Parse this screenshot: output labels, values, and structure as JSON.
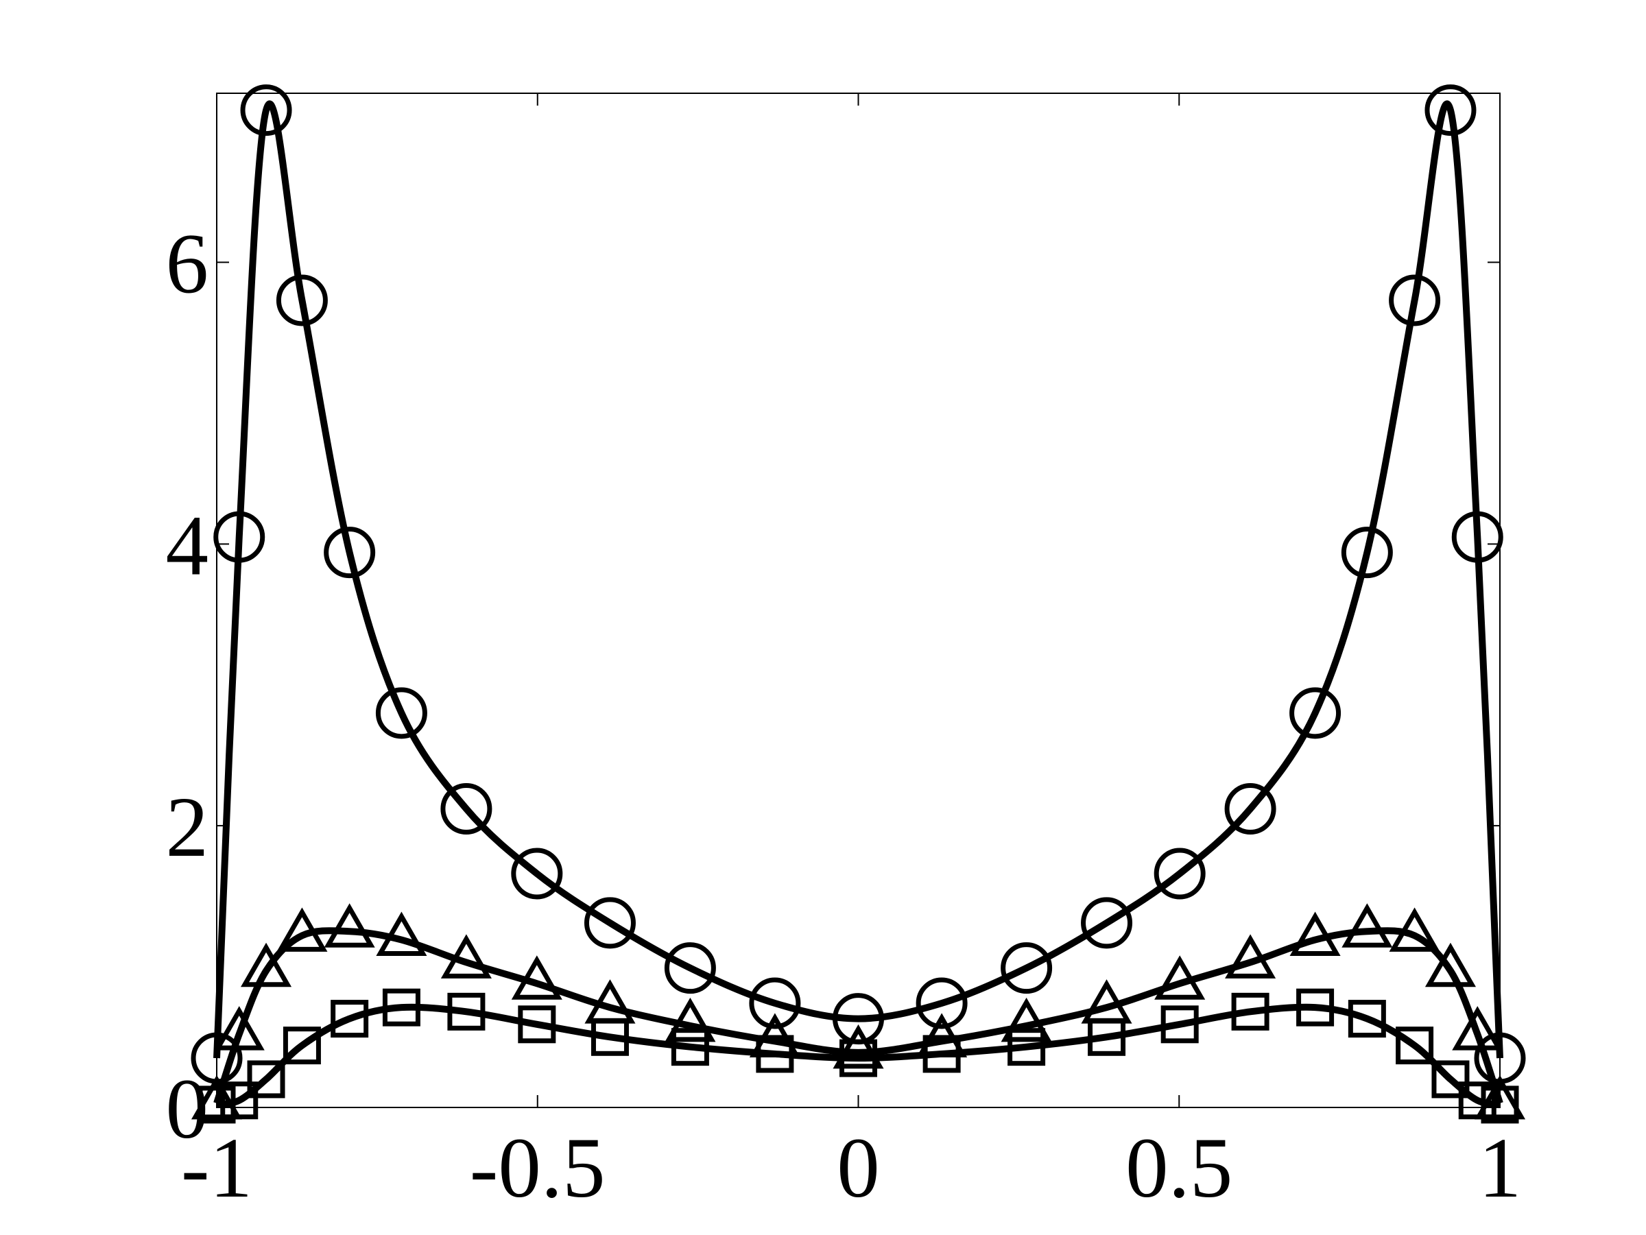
{
  "chart_data": {
    "type": "line",
    "x": [
      -1,
      -0.965,
      -0.923,
      -0.867,
      -0.793,
      -0.712,
      -0.611,
      -0.501,
      -0.387,
      -0.262,
      -0.13,
      0,
      0.13,
      0.262,
      0.387,
      0.501,
      0.611,
      0.712,
      0.793,
      0.867,
      0.923,
      0.965,
      1
    ],
    "series": [
      {
        "color": "#000000",
        "marker": "circle",
        "values": [
          0.35,
          4.05,
          7.08,
          5.73,
          3.94,
          2.8,
          2.12,
          1.66,
          1.31,
          0.99,
          0.74,
          0.63,
          0.74,
          0.99,
          1.31,
          1.66,
          2.12,
          2.8,
          3.94,
          5.73,
          7.08,
          4.05,
          0.35
        ]
      },
      {
        "color": "#000000",
        "marker": "triangle",
        "values": [
          0.03,
          0.52,
          0.97,
          1.22,
          1.25,
          1.19,
          1.03,
          0.88,
          0.71,
          0.58,
          0.47,
          0.39,
          0.47,
          0.58,
          0.71,
          0.88,
          1.03,
          1.19,
          1.25,
          1.22,
          0.97,
          0.52,
          0.03
        ]
      },
      {
        "color": "#000000",
        "marker": "square",
        "values": [
          0.02,
          0.05,
          0.2,
          0.44,
          0.63,
          0.71,
          0.68,
          0.59,
          0.5,
          0.43,
          0.38,
          0.35,
          0.38,
          0.43,
          0.5,
          0.59,
          0.68,
          0.71,
          0.63,
          0.44,
          0.2,
          0.05,
          0.02
        ]
      }
    ],
    "xlim": [
      -1,
      1
    ],
    "ylim": [
      0,
      7.2
    ],
    "xticks": [
      -1,
      -0.5,
      0,
      0.5,
      1
    ],
    "yticks": [
      0,
      2,
      4,
      6
    ],
    "grid": false
  }
}
